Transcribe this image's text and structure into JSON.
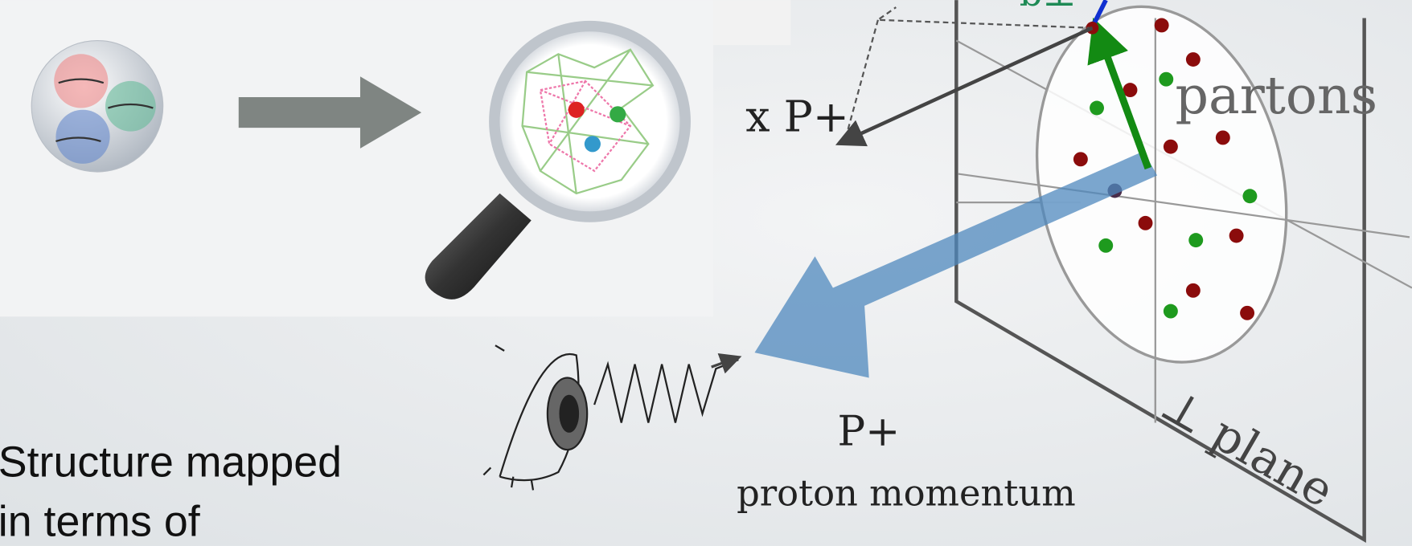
{
  "diagram": {
    "top_label": "b⊥",
    "momentum_fraction": "x P+",
    "partons": "partons",
    "plane": "⊥ plane",
    "proton_momentum_symbol": "P+",
    "proton_momentum": "proton momentum"
  },
  "body": {
    "lines": [
      "Structure mapped",
      "in terms of"
    ]
  }
}
